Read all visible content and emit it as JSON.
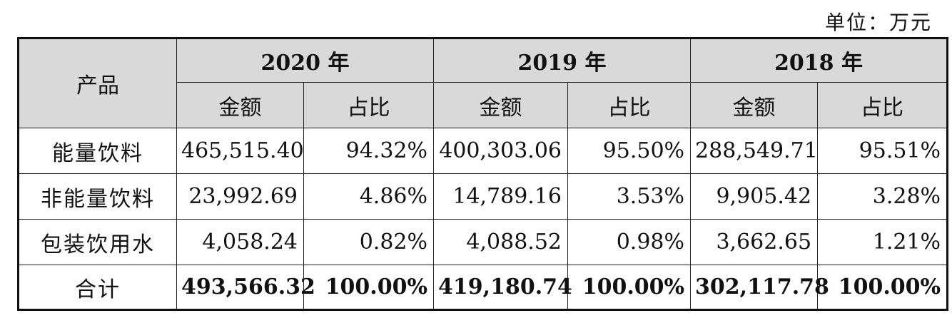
{
  "unit": "单位：万元",
  "header": {
    "product": "产品",
    "years": [
      "2020 年",
      "2019 年",
      "2018 年"
    ],
    "amount": "金额",
    "share": "占比"
  },
  "rows": [
    {
      "product": "能量饮料",
      "cells": [
        "465,515.40",
        "94.32%",
        "400,303.06",
        "95.50%",
        "288,549.71",
        "95.51%"
      ]
    },
    {
      "product": "非能量饮料",
      "cells": [
        "23,992.69",
        "4.86%",
        "14,789.16",
        "3.53%",
        "9,905.42",
        "3.28%"
      ]
    },
    {
      "product": "包装饮用水",
      "cells": [
        "4,058.24",
        "0.82%",
        "4,088.52",
        "0.98%",
        "3,662.65",
        "1.21%"
      ]
    },
    {
      "product": "合计",
      "cells": [
        "493,566.32",
        "100.00%",
        "419,180.74",
        "100.00%",
        "302,117.78",
        "100.00%"
      ]
    }
  ]
}
